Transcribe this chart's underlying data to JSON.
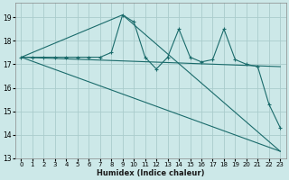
{
  "xlabel": "Humidex (Indice chaleur)",
  "bg_color": "#cce8e8",
  "grid_color": "#aacccc",
  "line_color": "#1a6b6b",
  "xlim": [
    -0.5,
    23.5
  ],
  "ylim": [
    13,
    19.6
  ],
  "yticks": [
    13,
    14,
    15,
    16,
    17,
    18,
    19
  ],
  "xticks": [
    0,
    1,
    2,
    3,
    4,
    5,
    6,
    7,
    8,
    9,
    10,
    11,
    12,
    13,
    14,
    15,
    16,
    17,
    18,
    19,
    20,
    21,
    22,
    23
  ],
  "main_y": [
    17.3,
    17.3,
    17.3,
    17.3,
    17.3,
    17.3,
    17.3,
    17.3,
    17.5,
    19.1,
    18.8,
    17.3,
    16.8,
    17.3,
    18.5,
    17.3,
    17.1,
    17.2,
    18.5,
    17.2,
    17.0,
    16.9,
    15.3,
    14.3
  ],
  "upper_line": [
    [
      0,
      17.3
    ],
    [
      9,
      19.1
    ],
    [
      23,
      13.3
    ]
  ],
  "lower_line": [
    [
      0,
      17.3
    ],
    [
      23,
      13.3
    ]
  ],
  "mid_line": [
    [
      0,
      17.3
    ],
    [
      23,
      16.9
    ]
  ],
  "x": [
    0,
    1,
    2,
    3,
    4,
    5,
    6,
    7,
    8,
    9,
    10,
    11,
    12,
    13,
    14,
    15,
    16,
    17,
    18,
    19,
    20,
    21,
    22,
    23
  ]
}
